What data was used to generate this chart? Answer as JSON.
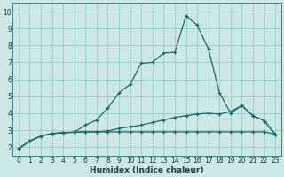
{
  "xlabel": "Humidex (Indice chaleur)",
  "background_color": "#cce8e6",
  "grid_color": "#88c8c4",
  "line_color": "#1a6b62",
  "xlim": [
    -0.5,
    23.5
  ],
  "ylim": [
    1.5,
    10.5
  ],
  "xticks": [
    0,
    1,
    2,
    3,
    4,
    5,
    6,
    7,
    8,
    9,
    10,
    11,
    12,
    13,
    14,
    15,
    16,
    17,
    18,
    19,
    20,
    21,
    22,
    23
  ],
  "yticks": [
    2,
    3,
    4,
    5,
    6,
    7,
    8,
    9,
    10
  ],
  "line1_x": [
    0,
    1,
    2,
    3,
    4,
    5,
    6,
    7,
    8,
    9,
    10,
    11,
    12,
    13,
    14,
    15,
    16,
    17,
    18,
    19,
    20,
    21,
    22,
    23
  ],
  "line1_y": [
    1.9,
    2.35,
    2.65,
    2.8,
    2.85,
    2.88,
    2.9,
    2.9,
    2.9,
    2.9,
    2.9,
    2.9,
    2.9,
    2.9,
    2.9,
    2.9,
    2.9,
    2.9,
    2.9,
    2.9,
    2.9,
    2.9,
    2.9,
    2.75
  ],
  "line2_x": [
    0,
    1,
    2,
    3,
    4,
    5,
    6,
    7,
    8,
    9,
    10,
    11,
    12,
    13,
    14,
    15,
    16,
    17,
    18,
    19,
    20,
    21,
    22,
    23
  ],
  "line2_y": [
    1.9,
    2.35,
    2.65,
    2.8,
    2.85,
    2.88,
    2.9,
    2.9,
    2.95,
    3.1,
    3.2,
    3.3,
    3.45,
    3.6,
    3.75,
    3.85,
    3.95,
    4.0,
    3.95,
    4.1,
    4.45,
    3.85,
    3.55,
    2.75
  ],
  "line3_x": [
    0,
    1,
    2,
    3,
    4,
    5,
    6,
    7,
    8,
    9,
    10,
    11,
    12,
    13,
    14,
    15,
    16,
    17,
    18,
    19,
    20,
    21,
    22,
    23
  ],
  "line3_y": [
    1.9,
    2.35,
    2.65,
    2.8,
    2.85,
    2.88,
    3.3,
    3.6,
    4.3,
    5.2,
    5.7,
    6.95,
    7.0,
    7.55,
    7.6,
    9.75,
    9.2,
    7.8,
    5.2,
    4.0,
    4.45,
    3.85,
    3.55,
    2.75
  ],
  "marker": "+",
  "tick_fontsize": 5.5,
  "xlabel_fontsize": 6.5
}
